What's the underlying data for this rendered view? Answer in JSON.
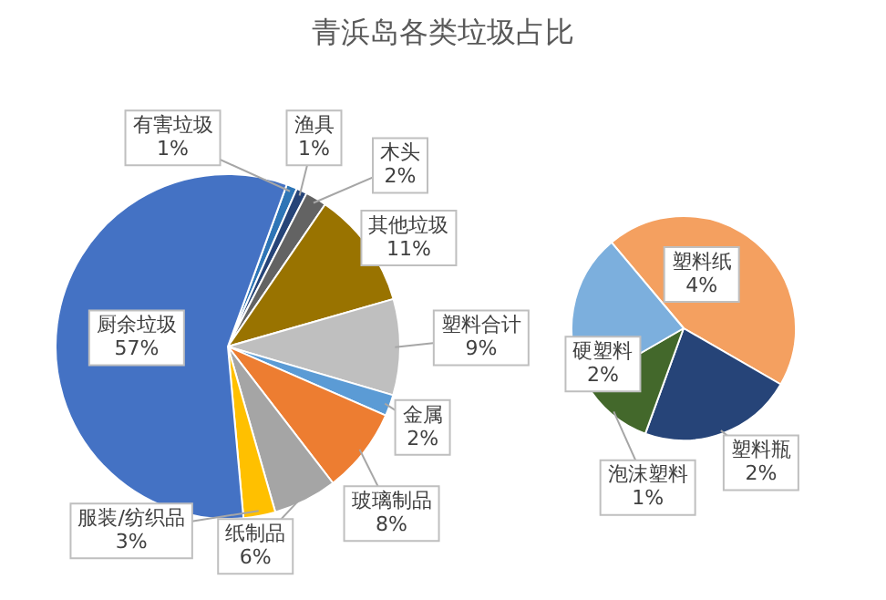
{
  "chart_data": [
    {
      "type": "pie",
      "title": "青浜岛各类垃圾占比",
      "categories": [
        "有害垃圾",
        "渔具",
        "木头",
        "其他垃圾",
        "塑料合计",
        "金属",
        "玻璃制品",
        "纸制品",
        "服装/纺织品",
        "厨余垃圾"
      ],
      "values": [
        1,
        1,
        2,
        11,
        9,
        2,
        8,
        6,
        3,
        57
      ],
      "value_labels": [
        "1%",
        "1%",
        "2%",
        "11%",
        "9%",
        "2%",
        "8%",
        "6%",
        "3%",
        "57%"
      ],
      "colors": [
        "#2e75b6",
        "#264478",
        "#636363",
        "#997300",
        "#bfbfbf",
        "#5b9bd5",
        "#ed7d31",
        "#a5a5a5",
        "#ffc000",
        "#4472c4"
      ]
    },
    {
      "type": "pie",
      "categories": [
        "塑料纸",
        "塑料瓶",
        "泡沫塑料",
        "硬塑料"
      ],
      "values": [
        4,
        2,
        1,
        2
      ],
      "value_labels": [
        "4%",
        "2%",
        "1%",
        "2%"
      ],
      "colors": [
        "#f4a060",
        "#264478",
        "#43682b",
        "#7cafdd"
      ]
    }
  ]
}
